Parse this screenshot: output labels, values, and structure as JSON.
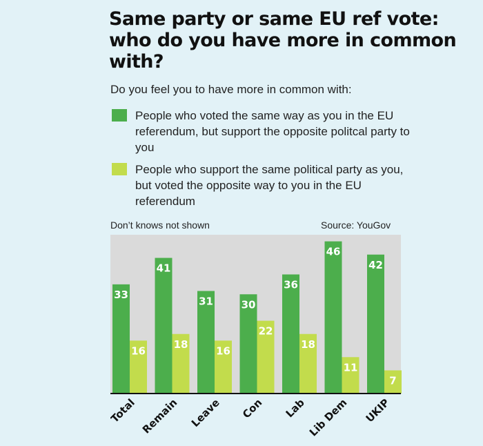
{
  "header": {
    "title": "Same party or same EU ref vote: who do you have more in common with?",
    "subtitle": "Do you feel you to have more in common with:"
  },
  "legend": [
    {
      "label": "People who voted the same way as you in the EU referendum, but support the opposite politcal party to you",
      "color": "#4cae4c"
    },
    {
      "label": "People who support the same political party as you, but voted the opposite way to you in the EU referendum",
      "color": "#c2dc4c"
    }
  ],
  "notes": {
    "dont_knows": "Don’t knows not shown",
    "source": "Source: YouGov"
  },
  "colors": {
    "background": "#e2f2f7",
    "plot_background": "#dadada",
    "axis": "#111111"
  },
  "chart_data": {
    "type": "bar",
    "title": "Same party or same EU ref vote: who do you have more in common with?",
    "categories": [
      "Total",
      "Remain",
      "Leave",
      "Con",
      "Lab",
      "Lib Dem",
      "UKIP"
    ],
    "series": [
      {
        "name": "People who voted the same way as you in the EU referendum, but support the opposite politcal party to you",
        "values": [
          33,
          41,
          31,
          30,
          36,
          46,
          42
        ]
      },
      {
        "name": "People who support the same political party as you, but voted the opposite way to you in the EU referendum",
        "values": [
          16,
          18,
          16,
          22,
          18,
          11,
          7
        ]
      }
    ],
    "ylim": [
      0,
      48
    ],
    "grid": false
  }
}
